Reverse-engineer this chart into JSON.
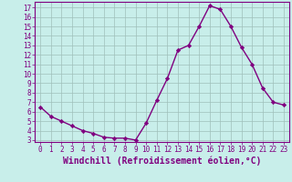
{
  "x": [
    0,
    1,
    2,
    3,
    4,
    5,
    6,
    7,
    8,
    9,
    10,
    11,
    12,
    13,
    14,
    15,
    16,
    17,
    18,
    19,
    20,
    21,
    22,
    23
  ],
  "y": [
    6.5,
    5.5,
    5.0,
    4.5,
    4.0,
    3.7,
    3.3,
    3.2,
    3.2,
    3.0,
    4.8,
    7.2,
    9.5,
    12.5,
    13.0,
    15.0,
    17.2,
    16.8,
    15.0,
    12.8,
    11.0,
    8.5,
    7.0,
    6.7
  ],
  "line_color": "#800080",
  "marker": "D",
  "markersize": 2.2,
  "linewidth": 1.0,
  "background_color": "#c8eeea",
  "grid_color": "#9fbfba",
  "xlabel": "Windchill (Refroidissement éolien,°C)",
  "xlim": [
    -0.5,
    23.5
  ],
  "ylim": [
    2.8,
    17.6
  ],
  "yticks": [
    3,
    4,
    5,
    6,
    7,
    8,
    9,
    10,
    11,
    12,
    13,
    14,
    15,
    16,
    17
  ],
  "xticks": [
    0,
    1,
    2,
    3,
    4,
    5,
    6,
    7,
    8,
    9,
    10,
    11,
    12,
    13,
    14,
    15,
    16,
    17,
    18,
    19,
    20,
    21,
    22,
    23
  ],
  "tick_fontsize": 5.5,
  "xlabel_fontsize": 7.0,
  "label_color": "#800080",
  "spine_color": "#800080"
}
